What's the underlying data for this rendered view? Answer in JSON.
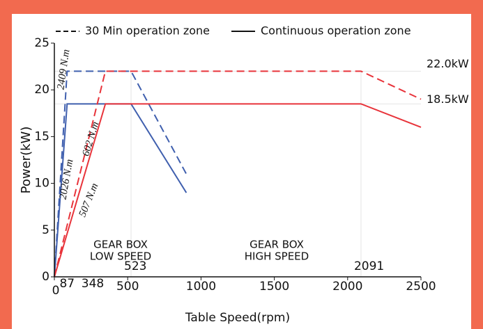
{
  "chart_data": {
    "type": "line",
    "legend": [
      {
        "label": "30 Min operation zone",
        "dashed": true
      },
      {
        "label": "Continuous operation zone",
        "dashed": false
      }
    ],
    "series": [
      {
        "color": "#3f5fae",
        "dashed": true,
        "x": [
          0,
          87,
          523,
          900
        ],
        "values": [
          0,
          22,
          22,
          11
        ]
      },
      {
        "color": "#3f5fae",
        "dashed": false,
        "x": [
          0,
          87,
          523,
          900
        ],
        "values": [
          0,
          18.5,
          18.5,
          9
        ]
      },
      {
        "color": "#e8333a",
        "dashed": true,
        "x": [
          0,
          348,
          2091,
          2500
        ],
        "values": [
          0,
          22,
          22,
          19
        ]
      },
      {
        "color": "#e8333a",
        "dashed": false,
        "x": [
          0,
          348,
          2091,
          2500
        ],
        "values": [
          0,
          18.5,
          18.5,
          16
        ]
      }
    ],
    "xlim": [
      0,
      2500
    ],
    "ylim": [
      0,
      25
    ],
    "xticks": [
      0,
      500,
      1000,
      1500,
      2000,
      2500
    ],
    "yticks": [
      0,
      5,
      10,
      15,
      20,
      25
    ],
    "x_label": "Table Speed(rpm)",
    "y_label": "Power(kW)",
    "x_marks": [
      {
        "value": 87,
        "label": "87"
      },
      {
        "value": 348,
        "label": "348"
      },
      {
        "value": 523,
        "label": "523"
      },
      {
        "value": 2091,
        "label": "2091"
      }
    ],
    "y_marks": [
      {
        "value": 22,
        "label": "22.0kW"
      },
      {
        "value": 18.5,
        "label": "18.5kW"
      }
    ],
    "annotations": [
      {
        "text": "2409 N.m",
        "color": "#3f5fae"
      },
      {
        "text": "2026 N.m",
        "color": "#3f5fae"
      },
      {
        "text": "602 N.m",
        "color": "#e8333a"
      },
      {
        "text": "507 N.m",
        "color": "#e8333a"
      }
    ],
    "zones": [
      {
        "lines": [
          "GEAR BOX",
          "LOW SPEED"
        ],
        "color": "#3f5fae"
      },
      {
        "lines": [
          "GEAR BOX",
          "HIGH SPEED"
        ],
        "color": "#e8333a"
      }
    ]
  }
}
